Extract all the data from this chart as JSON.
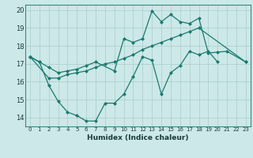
{
  "xlabel": "Humidex (Indice chaleur)",
  "background_color": "#cce8e8",
  "grid_color": "#aacccc",
  "line_color": "#1a7a6e",
  "xlim": [
    -0.5,
    23.5
  ],
  "ylim": [
    13.5,
    20.3
  ],
  "yticks": [
    14,
    15,
    16,
    17,
    18,
    19,
    20
  ],
  "xticks": [
    0,
    1,
    2,
    3,
    4,
    5,
    6,
    7,
    8,
    9,
    10,
    11,
    12,
    13,
    14,
    15,
    16,
    17,
    18,
    19,
    20,
    21,
    22,
    23
  ],
  "series1_x": [
    0,
    1,
    2,
    3,
    4,
    5,
    6,
    7,
    8,
    9,
    10,
    11,
    12,
    13,
    14,
    15,
    16,
    17,
    18,
    19,
    20
  ],
  "series1_y": [
    17.4,
    17.1,
    15.8,
    14.9,
    14.3,
    14.1,
    13.8,
    13.8,
    14.8,
    14.8,
    15.3,
    16.3,
    17.4,
    17.2,
    15.3,
    16.5,
    16.9,
    17.7,
    17.5,
    17.7,
    17.1
  ],
  "series2_x": [
    0,
    2,
    3,
    4,
    5,
    6,
    7,
    8,
    9,
    10,
    11,
    12,
    13,
    14,
    15,
    16,
    17,
    18,
    23
  ],
  "series2_y": [
    17.4,
    16.2,
    16.2,
    16.4,
    16.5,
    16.6,
    16.8,
    17.0,
    17.1,
    17.3,
    17.5,
    17.8,
    18.0,
    18.2,
    18.4,
    18.6,
    18.8,
    19.0,
    17.1
  ],
  "series3_x": [
    0,
    1,
    2,
    3,
    4,
    5,
    6,
    7,
    9,
    10,
    11,
    12,
    13,
    14,
    15,
    16,
    17,
    18,
    19,
    20,
    21,
    23
  ],
  "series3_y": [
    17.4,
    17.1,
    16.8,
    16.5,
    16.6,
    16.7,
    16.9,
    17.1,
    16.6,
    18.4,
    18.2,
    18.4,
    19.95,
    19.35,
    19.75,
    19.35,
    19.25,
    19.55,
    17.6,
    17.65,
    17.7,
    17.1
  ],
  "marker": "D",
  "markersize": 2.5,
  "linewidth": 0.9
}
